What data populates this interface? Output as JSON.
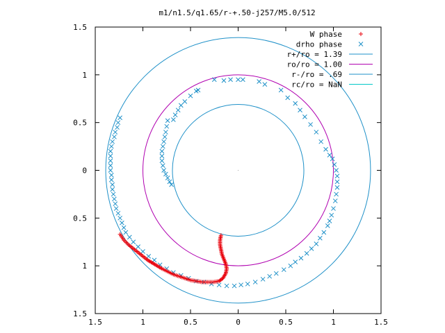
{
  "chart_data": {
    "type": "scatter",
    "title": "m1/n1.5/q1.65/r-+.50-j257/M5.0/512",
    "xlim": [
      -1.5,
      1.5
    ],
    "ylim": [
      -1.5,
      1.5
    ],
    "xticks": [
      -1.5,
      -1,
      -0.5,
      0,
      0.5,
      1,
      1.5
    ],
    "xtick_labels": [
      "1.5",
      "1",
      "0.5",
      "0",
      "0.5",
      "1",
      "1.5"
    ],
    "yticks": [
      1.5,
      1,
      0.5,
      0,
      -0.5,
      -1,
      -1.5
    ],
    "ytick_labels": [
      "1.5",
      "1",
      "0.5",
      "0",
      "0.5",
      "1",
      "1.5"
    ],
    "grid": false,
    "legend_position": "top-right",
    "legend": [
      {
        "label": "W phase",
        "marker": "+",
        "color": "#e8000b"
      },
      {
        "label": "drho phase",
        "marker": "x",
        "color": "#1e90c8"
      },
      {
        "label": "r+/ro = 1.39",
        "line": true,
        "color": "#1e90c8"
      },
      {
        "label": "ro/ro = 1.00",
        "line": true,
        "color": "#b000b0"
      },
      {
        "label": "r-/ro = .69",
        "line": true,
        "color": "#1e90c8"
      },
      {
        "label": "rc/ro = NaN",
        "line": true,
        "color": "#00c8c8"
      }
    ],
    "circles": [
      {
        "name": "r+/ro",
        "radius": 1.39,
        "color": "#1e90c8"
      },
      {
        "name": "ro/ro",
        "radius": 1.0,
        "color": "#b000b0"
      },
      {
        "name": "r-/ro",
        "radius": 0.69,
        "color": "#1e90c8"
      }
    ],
    "series": [
      {
        "name": "drho phase",
        "marker": "x",
        "color": "#1e90c8",
        "points": [
          [
            -0.42,
            0.84
          ],
          [
            -0.44,
            0.83
          ],
          [
            -0.5,
            0.78
          ],
          [
            -0.56,
            0.72
          ],
          [
            -0.6,
            0.68
          ],
          [
            -0.63,
            0.63
          ],
          [
            -0.66,
            0.58
          ],
          [
            -0.68,
            0.53
          ],
          [
            -0.74,
            0.52
          ],
          [
            -0.75,
            0.46
          ],
          [
            -0.76,
            0.4
          ],
          [
            -0.77,
            0.35
          ],
          [
            -0.78,
            0.3
          ],
          [
            -0.79,
            0.25
          ],
          [
            -0.8,
            0.2
          ],
          [
            -0.8,
            0.15
          ],
          [
            -0.8,
            0.1
          ],
          [
            -0.79,
            0.05
          ],
          [
            -0.78,
            0.0
          ],
          [
            -0.76,
            -0.04
          ],
          [
            -0.74,
            -0.08
          ],
          [
            -0.72,
            -0.12
          ],
          [
            -0.7,
            -0.15
          ],
          [
            -0.25,
            0.95
          ],
          [
            -0.15,
            0.94
          ],
          [
            -0.08,
            0.95
          ],
          [
            0.0,
            0.95
          ],
          [
            0.05,
            0.95
          ],
          [
            0.22,
            0.93
          ],
          [
            0.28,
            0.9
          ],
          [
            0.45,
            0.84
          ],
          [
            0.52,
            0.76
          ],
          [
            0.6,
            0.7
          ],
          [
            0.65,
            0.63
          ],
          [
            0.7,
            0.56
          ],
          [
            0.76,
            0.48
          ],
          [
            0.82,
            0.4
          ],
          [
            0.87,
            0.3
          ],
          [
            0.92,
            0.22
          ],
          [
            0.96,
            0.16
          ],
          [
            0.99,
            0.12
          ],
          [
            1.01,
            0.06
          ],
          [
            1.03,
            0.0
          ],
          [
            1.04,
            -0.06
          ],
          [
            1.04,
            -0.12
          ],
          [
            1.04,
            -0.18
          ],
          [
            1.03,
            -0.25
          ],
          [
            1.02,
            -0.32
          ],
          [
            1.0,
            -0.4
          ],
          [
            0.98,
            -0.47
          ],
          [
            0.96,
            -0.53
          ],
          [
            0.94,
            -0.58
          ],
          [
            0.9,
            -0.65
          ],
          [
            0.86,
            -0.71
          ],
          [
            0.82,
            -0.77
          ],
          [
            0.77,
            -0.82
          ],
          [
            0.72,
            -0.87
          ],
          [
            0.66,
            -0.92
          ],
          [
            0.6,
            -0.96
          ],
          [
            0.55,
            -1.0
          ],
          [
            0.48,
            -1.04
          ],
          [
            0.4,
            -1.08
          ],
          [
            0.33,
            -1.11
          ],
          [
            0.26,
            -1.14
          ],
          [
            0.18,
            -1.17
          ],
          [
            0.1,
            -1.19
          ],
          [
            0.03,
            -1.2
          ],
          [
            -0.04,
            -1.21
          ],
          [
            -0.12,
            -1.21
          ],
          [
            -0.2,
            -1.2
          ],
          [
            -0.28,
            -1.19
          ],
          [
            -0.36,
            -1.17
          ],
          [
            -0.44,
            -1.16
          ],
          [
            -0.52,
            -1.13
          ],
          [
            -0.6,
            -1.1
          ],
          [
            -0.68,
            -1.07
          ],
          [
            -0.75,
            -1.03
          ],
          [
            -0.82,
            -0.99
          ],
          [
            -0.88,
            -0.94
          ],
          [
            -0.94,
            -0.9
          ],
          [
            -1.0,
            -0.85
          ],
          [
            -1.05,
            -0.8
          ],
          [
            -1.1,
            -0.75
          ],
          [
            -1.14,
            -0.7
          ],
          [
            -1.18,
            -0.65
          ],
          [
            -1.2,
            -0.6
          ],
          [
            -1.22,
            -0.55
          ],
          [
            -1.24,
            -0.5
          ],
          [
            -1.26,
            -0.45
          ],
          [
            -1.28,
            -0.4
          ],
          [
            -1.29,
            -0.35
          ],
          [
            -1.3,
            -0.3
          ],
          [
            -1.31,
            -0.25
          ],
          [
            -1.32,
            -0.2
          ],
          [
            -1.32,
            -0.15
          ],
          [
            -1.33,
            -0.1
          ],
          [
            -1.33,
            -0.05
          ],
          [
            -1.34,
            0.0
          ],
          [
            -1.34,
            0.05
          ],
          [
            -1.34,
            0.1
          ],
          [
            -1.34,
            0.15
          ],
          [
            -1.34,
            0.2
          ],
          [
            -1.33,
            0.25
          ],
          [
            -1.32,
            0.3
          ],
          [
            -1.3,
            0.35
          ],
          [
            -1.29,
            0.4
          ],
          [
            -1.27,
            0.45
          ],
          [
            -1.26,
            0.5
          ],
          [
            -1.24,
            0.55
          ]
        ]
      },
      {
        "name": "W phase",
        "marker": "+",
        "color": "#e8000b",
        "points": [
          [
            -1.24,
            -0.67
          ],
          [
            -1.2,
            -0.73
          ],
          [
            -1.15,
            -0.78
          ],
          [
            -1.1,
            -0.82
          ],
          [
            -1.05,
            -0.86
          ],
          [
            -1.0,
            -0.9
          ],
          [
            -0.95,
            -0.94
          ],
          [
            -0.9,
            -0.97
          ],
          [
            -0.85,
            -1.0
          ],
          [
            -0.8,
            -1.03
          ],
          [
            -0.74,
            -1.06
          ],
          [
            -0.68,
            -1.09
          ],
          [
            -0.62,
            -1.11
          ],
          [
            -0.56,
            -1.13
          ],
          [
            -0.5,
            -1.15
          ],
          [
            -0.44,
            -1.16
          ],
          [
            -0.38,
            -1.17
          ],
          [
            -0.32,
            -1.17
          ],
          [
            -0.26,
            -1.17
          ],
          [
            -0.2,
            -1.16
          ],
          [
            -0.16,
            -1.13
          ],
          [
            -0.13,
            -1.08
          ],
          [
            -0.12,
            -1.03
          ],
          [
            -0.13,
            -0.98
          ],
          [
            -0.15,
            -0.93
          ],
          [
            -0.17,
            -0.88
          ],
          [
            -0.18,
            -0.83
          ],
          [
            -0.19,
            -0.78
          ],
          [
            -0.19,
            -0.73
          ],
          [
            -0.18,
            -0.68
          ]
        ]
      }
    ]
  }
}
